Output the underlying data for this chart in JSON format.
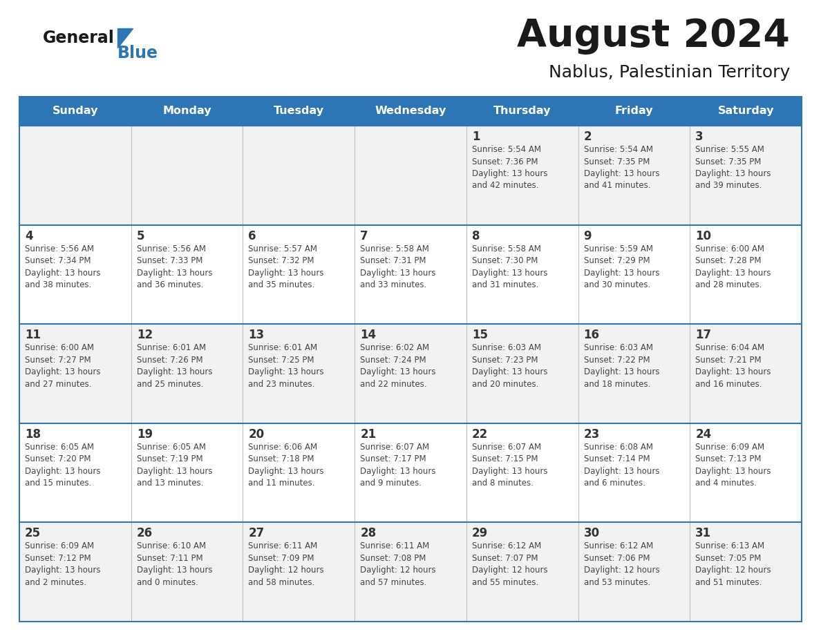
{
  "title": "August 2024",
  "subtitle": "Nablus, Palestinian Territory",
  "header_bg": "#2E75B6",
  "header_text": "#FFFFFF",
  "day_names": [
    "Sunday",
    "Monday",
    "Tuesday",
    "Wednesday",
    "Thursday",
    "Friday",
    "Saturday"
  ],
  "cell_bg_even": "#F2F2F2",
  "cell_bg_odd": "#FFFFFF",
  "cell_border": "#2E75B6",
  "cell_border_light": "#AAAAAA",
  "day_num_color": "#333333",
  "text_color": "#444444",
  "logo_general_color": "#1A1A1A",
  "logo_blue_color": "#2E75B6",
  "weeks": [
    [
      {
        "day": null,
        "info": null
      },
      {
        "day": null,
        "info": null
      },
      {
        "day": null,
        "info": null
      },
      {
        "day": null,
        "info": null
      },
      {
        "day": "1",
        "info": "Sunrise: 5:54 AM\nSunset: 7:36 PM\nDaylight: 13 hours\nand 42 minutes."
      },
      {
        "day": "2",
        "info": "Sunrise: 5:54 AM\nSunset: 7:35 PM\nDaylight: 13 hours\nand 41 minutes."
      },
      {
        "day": "3",
        "info": "Sunrise: 5:55 AM\nSunset: 7:35 PM\nDaylight: 13 hours\nand 39 minutes."
      }
    ],
    [
      {
        "day": "4",
        "info": "Sunrise: 5:56 AM\nSunset: 7:34 PM\nDaylight: 13 hours\nand 38 minutes."
      },
      {
        "day": "5",
        "info": "Sunrise: 5:56 AM\nSunset: 7:33 PM\nDaylight: 13 hours\nand 36 minutes."
      },
      {
        "day": "6",
        "info": "Sunrise: 5:57 AM\nSunset: 7:32 PM\nDaylight: 13 hours\nand 35 minutes."
      },
      {
        "day": "7",
        "info": "Sunrise: 5:58 AM\nSunset: 7:31 PM\nDaylight: 13 hours\nand 33 minutes."
      },
      {
        "day": "8",
        "info": "Sunrise: 5:58 AM\nSunset: 7:30 PM\nDaylight: 13 hours\nand 31 minutes."
      },
      {
        "day": "9",
        "info": "Sunrise: 5:59 AM\nSunset: 7:29 PM\nDaylight: 13 hours\nand 30 minutes."
      },
      {
        "day": "10",
        "info": "Sunrise: 6:00 AM\nSunset: 7:28 PM\nDaylight: 13 hours\nand 28 minutes."
      }
    ],
    [
      {
        "day": "11",
        "info": "Sunrise: 6:00 AM\nSunset: 7:27 PM\nDaylight: 13 hours\nand 27 minutes."
      },
      {
        "day": "12",
        "info": "Sunrise: 6:01 AM\nSunset: 7:26 PM\nDaylight: 13 hours\nand 25 minutes."
      },
      {
        "day": "13",
        "info": "Sunrise: 6:01 AM\nSunset: 7:25 PM\nDaylight: 13 hours\nand 23 minutes."
      },
      {
        "day": "14",
        "info": "Sunrise: 6:02 AM\nSunset: 7:24 PM\nDaylight: 13 hours\nand 22 minutes."
      },
      {
        "day": "15",
        "info": "Sunrise: 6:03 AM\nSunset: 7:23 PM\nDaylight: 13 hours\nand 20 minutes."
      },
      {
        "day": "16",
        "info": "Sunrise: 6:03 AM\nSunset: 7:22 PM\nDaylight: 13 hours\nand 18 minutes."
      },
      {
        "day": "17",
        "info": "Sunrise: 6:04 AM\nSunset: 7:21 PM\nDaylight: 13 hours\nand 16 minutes."
      }
    ],
    [
      {
        "day": "18",
        "info": "Sunrise: 6:05 AM\nSunset: 7:20 PM\nDaylight: 13 hours\nand 15 minutes."
      },
      {
        "day": "19",
        "info": "Sunrise: 6:05 AM\nSunset: 7:19 PM\nDaylight: 13 hours\nand 13 minutes."
      },
      {
        "day": "20",
        "info": "Sunrise: 6:06 AM\nSunset: 7:18 PM\nDaylight: 13 hours\nand 11 minutes."
      },
      {
        "day": "21",
        "info": "Sunrise: 6:07 AM\nSunset: 7:17 PM\nDaylight: 13 hours\nand 9 minutes."
      },
      {
        "day": "22",
        "info": "Sunrise: 6:07 AM\nSunset: 7:15 PM\nDaylight: 13 hours\nand 8 minutes."
      },
      {
        "day": "23",
        "info": "Sunrise: 6:08 AM\nSunset: 7:14 PM\nDaylight: 13 hours\nand 6 minutes."
      },
      {
        "day": "24",
        "info": "Sunrise: 6:09 AM\nSunset: 7:13 PM\nDaylight: 13 hours\nand 4 minutes."
      }
    ],
    [
      {
        "day": "25",
        "info": "Sunrise: 6:09 AM\nSunset: 7:12 PM\nDaylight: 13 hours\nand 2 minutes."
      },
      {
        "day": "26",
        "info": "Sunrise: 6:10 AM\nSunset: 7:11 PM\nDaylight: 13 hours\nand 0 minutes."
      },
      {
        "day": "27",
        "info": "Sunrise: 6:11 AM\nSunset: 7:09 PM\nDaylight: 12 hours\nand 58 minutes."
      },
      {
        "day": "28",
        "info": "Sunrise: 6:11 AM\nSunset: 7:08 PM\nDaylight: 12 hours\nand 57 minutes."
      },
      {
        "day": "29",
        "info": "Sunrise: 6:12 AM\nSunset: 7:07 PM\nDaylight: 12 hours\nand 55 minutes."
      },
      {
        "day": "30",
        "info": "Sunrise: 6:12 AM\nSunset: 7:06 PM\nDaylight: 12 hours\nand 53 minutes."
      },
      {
        "day": "31",
        "info": "Sunrise: 6:13 AM\nSunset: 7:05 PM\nDaylight: 12 hours\nand 51 minutes."
      }
    ]
  ],
  "figsize": [
    11.88,
    9.18
  ],
  "dpi": 100
}
